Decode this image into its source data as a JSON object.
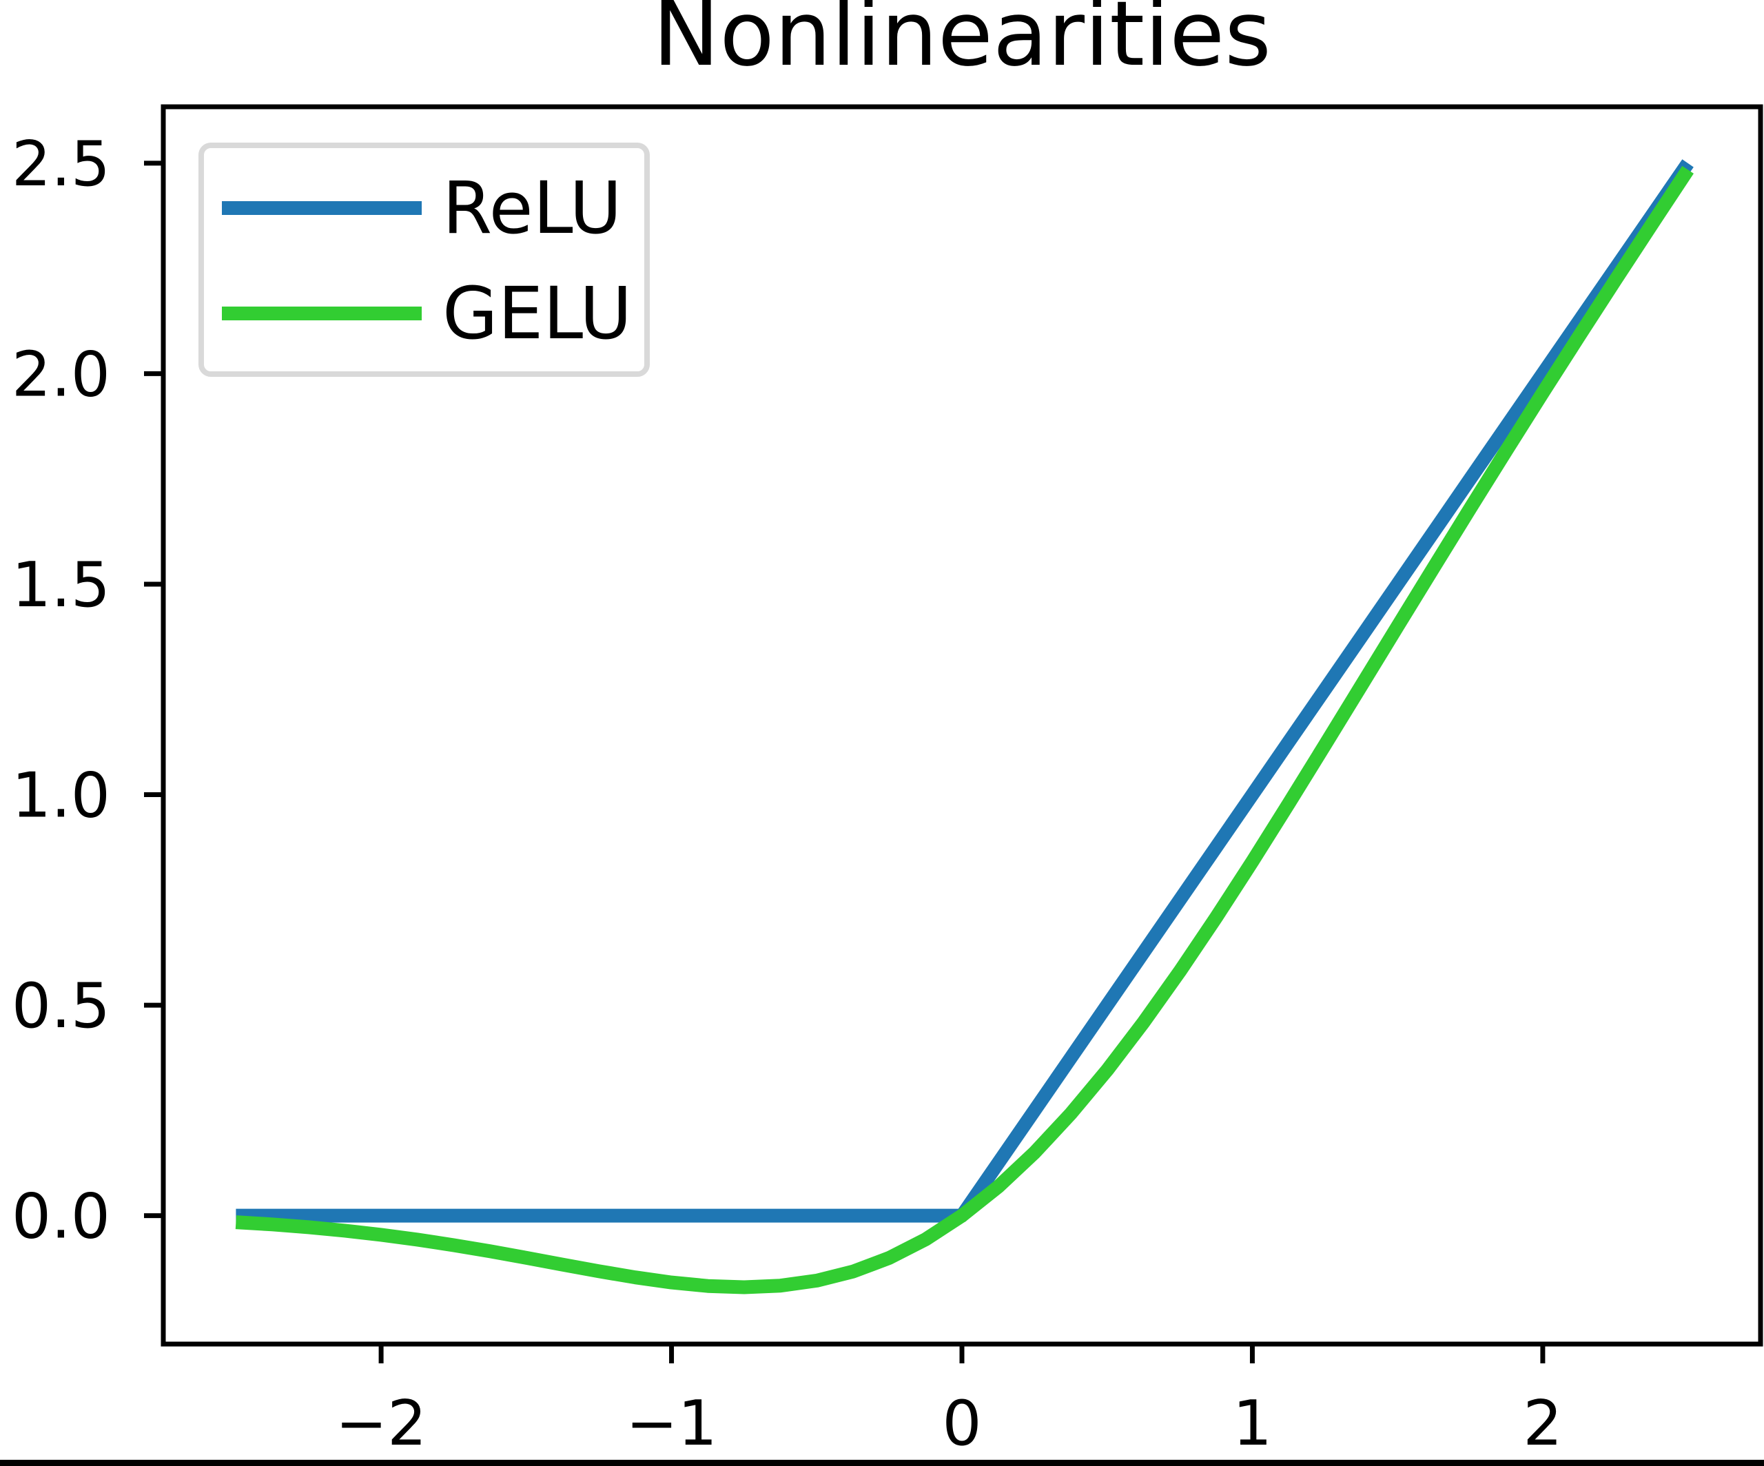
{
  "chart_data": {
    "type": "line",
    "title": "Nonlinearities",
    "xlabel": "",
    "ylabel": "",
    "grid": false,
    "xlim": [
      -2.75,
      2.75
    ],
    "ylim": [
      -0.305,
      2.634
    ],
    "xticks": {
      "values": [
        -2,
        -1,
        0,
        1,
        2
      ],
      "labels": [
        "−2",
        "−1",
        "0",
        "1",
        "2"
      ]
    },
    "yticks": {
      "values": [
        0.0,
        0.5,
        1.0,
        1.5,
        2.0,
        2.5
      ],
      "labels": [
        "0.0",
        "0.5",
        "1.0",
        "1.5",
        "2.0",
        "2.5"
      ]
    },
    "x": [
      -2.5,
      -2.375,
      -2.25,
      -2.125,
      -2.0,
      -1.875,
      -1.75,
      -1.625,
      -1.5,
      -1.375,
      -1.25,
      -1.125,
      -1.0,
      -0.875,
      -0.75,
      -0.625,
      -0.5,
      -0.375,
      -0.25,
      -0.125,
      0.0,
      0.125,
      0.25,
      0.375,
      0.5,
      0.625,
      0.75,
      0.875,
      1.0,
      1.125,
      1.25,
      1.375,
      1.5,
      1.625,
      1.75,
      1.875,
      2.0,
      2.125,
      2.25,
      2.375,
      2.5
    ],
    "series": [
      {
        "name": "ReLU",
        "color": "#1f77b4",
        "values": [
          0,
          0,
          0,
          0,
          0,
          0,
          0,
          0,
          0,
          0,
          0,
          0,
          0,
          0,
          0,
          0,
          0,
          0,
          0,
          0,
          0,
          0.125,
          0.25,
          0.375,
          0.5,
          0.625,
          0.75,
          0.875,
          1.0,
          1.125,
          1.25,
          1.375,
          1.5,
          1.625,
          1.75,
          1.875,
          2.0,
          2.125,
          2.25,
          2.375,
          2.5
        ]
      },
      {
        "name": "GELU",
        "color": "#32cd32",
        "values": [
          -0.0155,
          -0.0208,
          -0.0275,
          -0.0357,
          -0.0455,
          -0.057,
          -0.0702,
          -0.0846,
          -0.1002,
          -0.1163,
          -0.132,
          -0.1466,
          -0.1587,
          -0.167,
          -0.17,
          -0.1663,
          -0.1543,
          -0.1327,
          -0.1003,
          -0.0563,
          0.0,
          0.0687,
          0.1497,
          0.2423,
          0.3457,
          0.4588,
          0.5801,
          0.7081,
          0.8413,
          0.9784,
          1.118,
          1.2587,
          1.3998,
          1.5403,
          1.6798,
          1.818,
          1.9545,
          2.0893,
          2.2225,
          2.3542,
          2.4845
        ]
      }
    ],
    "legend": {
      "position": "upper left",
      "entries": [
        "ReLU",
        "GELU"
      ],
      "border_color": "#d9d9d9",
      "background": "#ffffff"
    },
    "colors": {
      "axes": "#000000",
      "tick_labels": "#000000",
      "title": "#000000",
      "bottom_bar": "#000000"
    }
  }
}
